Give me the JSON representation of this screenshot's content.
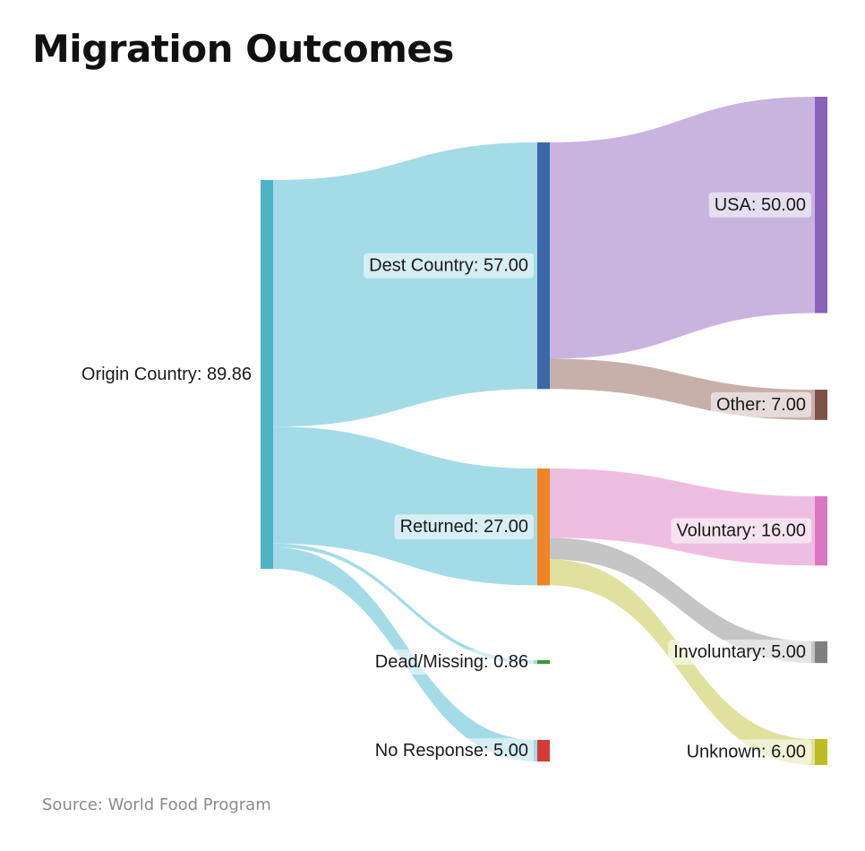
{
  "title": "Migration Outcomes",
  "source": "Source: World Food Program",
  "chart_data": {
    "type": "sankey",
    "nodes": [
      {
        "id": "origin",
        "name": "Origin Country",
        "value": 89.86,
        "label": "Origin Country: 89.86",
        "color": "#4eb3c7"
      },
      {
        "id": "dest",
        "name": "Dest Country",
        "value": 57.0,
        "label": "Dest Country: 57.00",
        "color": "#3a68a8"
      },
      {
        "id": "returned",
        "name": "Returned",
        "value": 27.0,
        "label": "Returned: 27.00",
        "color": "#ef8424"
      },
      {
        "id": "dead",
        "name": "Dead/Missing",
        "value": 0.86,
        "label": "Dead/Missing: 0.86",
        "color": "#3a9a3a"
      },
      {
        "id": "noresp",
        "name": "No Response",
        "value": 5.0,
        "label": "No Response: 5.00",
        "color": "#d33c33"
      },
      {
        "id": "usa",
        "name": "USA",
        "value": 50.0,
        "label": "USA: 50.00",
        "color": "#8b62ba"
      },
      {
        "id": "other",
        "name": "Other",
        "value": 7.0,
        "label": "Other: 7.00",
        "color": "#7f5146"
      },
      {
        "id": "voluntary",
        "name": "Voluntary",
        "value": 16.0,
        "label": "Voluntary: 16.00",
        "color": "#dc77c1"
      },
      {
        "id": "involuntary",
        "name": "Involuntary",
        "value": 5.0,
        "label": "Involuntary: 5.00",
        "color": "#7f7f7f"
      },
      {
        "id": "unknown",
        "name": "Unknown",
        "value": 6.0,
        "label": "Unknown: 6.00",
        "color": "#bcbd22"
      }
    ],
    "links": [
      {
        "source": "origin",
        "target": "dest",
        "value": 57.0,
        "color": "#9edae5"
      },
      {
        "source": "origin",
        "target": "returned",
        "value": 27.0,
        "color": "#9edae5"
      },
      {
        "source": "origin",
        "target": "dead",
        "value": 0.86,
        "color": "#9edae5"
      },
      {
        "source": "origin",
        "target": "noresp",
        "value": 5.0,
        "color": "#9edae5"
      },
      {
        "source": "dest",
        "target": "usa",
        "value": 50.0,
        "color": "#c5b0dd"
      },
      {
        "source": "dest",
        "target": "other",
        "value": 7.0,
        "color": "#c4aca5"
      },
      {
        "source": "returned",
        "target": "voluntary",
        "value": 16.0,
        "color": "#edbbdf"
      },
      {
        "source": "returned",
        "target": "involuntary",
        "value": 5.0,
        "color": "#c2c2c2"
      },
      {
        "source": "returned",
        "target": "unknown",
        "value": 6.0,
        "color": "#dfdf9a"
      }
    ]
  }
}
